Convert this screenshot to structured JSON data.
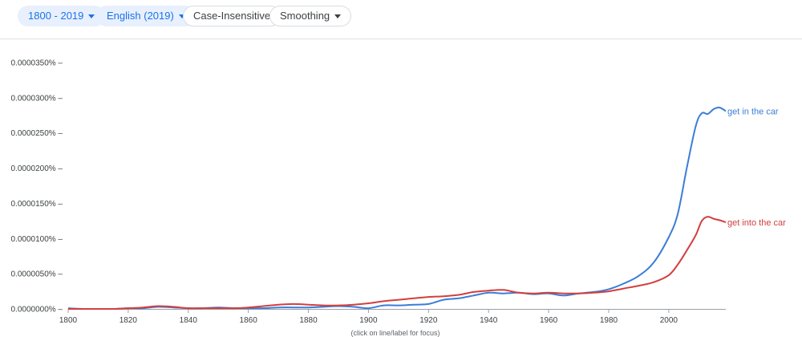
{
  "toolbar": {
    "year_range": "1800 - 2019",
    "corpus": "English (2019)",
    "case_option": "Case-Insensitive",
    "smoothing": "Smoothing"
  },
  "colors": {
    "accent": "#1a73e8",
    "series_blue": "#3b7dd8",
    "series_red": "#d23f3f"
  },
  "icons": {
    "dropdown": "caret-down-icon"
  },
  "footnote": "(click on line/label for focus)",
  "chart_data": {
    "type": "line",
    "xlim": [
      1800,
      2019
    ],
    "ylim": [
      0,
      3.5e-06
    ],
    "y_tick_labels": [
      "0.0000000%",
      "0.0000050%",
      "0.0000100%",
      "0.0000150%",
      "0.0000200%",
      "0.0000250%",
      "0.0000300%",
      "0.0000350%"
    ],
    "y_tick_values": [
      0,
      5e-07,
      1e-06,
      1.5e-06,
      2e-06,
      2.5e-06,
      3e-06,
      3.5e-06
    ],
    "x_tick_labels": [
      "1800",
      "1820",
      "1840",
      "1860",
      "1880",
      "1900",
      "1920",
      "1940",
      "1960",
      "1980",
      "2000"
    ],
    "x_tick_values": [
      1800,
      1820,
      1840,
      1860,
      1880,
      1900,
      1920,
      1940,
      1960,
      1980,
      2000
    ],
    "grid": false,
    "series": [
      {
        "name": "get in the car",
        "color": "#3b7dd8",
        "x": [
          1800,
          1805,
          1810,
          1815,
          1820,
          1825,
          1830,
          1835,
          1840,
          1845,
          1850,
          1855,
          1860,
          1865,
          1870,
          1875,
          1880,
          1885,
          1890,
          1895,
          1900,
          1905,
          1910,
          1915,
          1920,
          1925,
          1930,
          1935,
          1940,
          1945,
          1950,
          1955,
          1960,
          1965,
          1970,
          1975,
          1980,
          1985,
          1990,
          1995,
          2000,
          2003,
          2006,
          2009,
          2011,
          2013,
          2015,
          2017,
          2019
        ],
        "y": [
          1e-08,
          0,
          0,
          0,
          1e-08,
          1e-08,
          3e-08,
          2e-08,
          1e-08,
          1e-08,
          2e-08,
          1e-08,
          1e-08,
          1e-08,
          2e-08,
          2e-08,
          2e-08,
          3e-08,
          4e-08,
          3e-08,
          1e-08,
          5e-08,
          5e-08,
          6e-08,
          7e-08,
          1.3e-07,
          1.5e-07,
          1.9e-07,
          2.3e-07,
          2.2e-07,
          2.3e-07,
          2.1e-07,
          2.2e-07,
          1.9e-07,
          2.2e-07,
          2.4e-07,
          2.8e-07,
          3.6e-07,
          4.7e-07,
          6.6e-07,
          1.02e-06,
          1.35e-06,
          2e-06,
          2.6e-06,
          2.78e-06,
          2.77e-06,
          2.84e-06,
          2.86e-06,
          2.81e-06
        ]
      },
      {
        "name": "get into the car",
        "color": "#d23f3f",
        "x": [
          1800,
          1805,
          1810,
          1815,
          1820,
          1825,
          1830,
          1835,
          1840,
          1845,
          1850,
          1855,
          1860,
          1865,
          1870,
          1875,
          1880,
          1885,
          1890,
          1895,
          1900,
          1905,
          1910,
          1915,
          1920,
          1925,
          1930,
          1935,
          1940,
          1945,
          1950,
          1955,
          1960,
          1965,
          1970,
          1975,
          1980,
          1985,
          1990,
          1995,
          2000,
          2003,
          2006,
          2009,
          2011,
          2013,
          2015,
          2017,
          2019
        ],
        "y": [
          0,
          0,
          0,
          0,
          1e-08,
          2e-08,
          4e-08,
          3e-08,
          1e-08,
          1e-08,
          1e-08,
          1e-08,
          2e-08,
          4e-08,
          6e-08,
          7e-08,
          6e-08,
          5e-08,
          5e-08,
          6e-08,
          8e-08,
          1.1e-07,
          1.3e-07,
          1.5e-07,
          1.7e-07,
          1.8e-07,
          2e-07,
          2.4e-07,
          2.6e-07,
          2.7e-07,
          2.3e-07,
          2.2e-07,
          2.3e-07,
          2.2e-07,
          2.2e-07,
          2.3e-07,
          2.5e-07,
          2.9e-07,
          3.3e-07,
          3.8e-07,
          4.8e-07,
          6.3e-07,
          8.3e-07,
          1.05e-06,
          1.25e-06,
          1.31e-06,
          1.28e-06,
          1.26e-06,
          1.23e-06
        ]
      }
    ]
  }
}
